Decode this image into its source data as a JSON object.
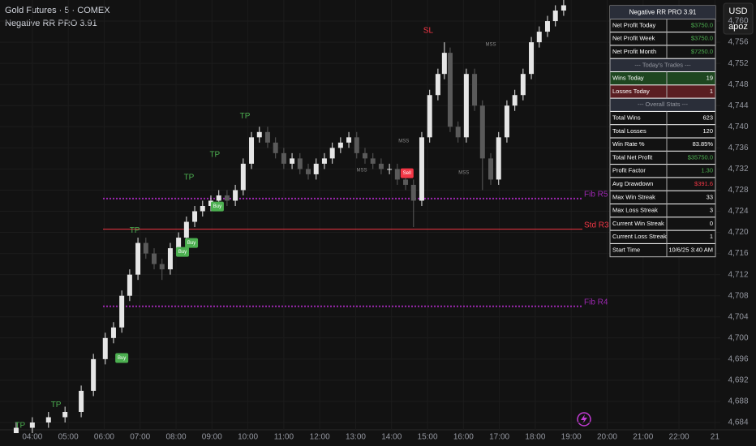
{
  "header": {
    "symbol": "Gold Futures · 5 · COMEX",
    "indicator": "Negative RR PRO 3.91"
  },
  "toolbar": {
    "currency": "USD",
    "user": "apoz"
  },
  "chart_data": {
    "type": "candlestick",
    "up_color": "#e6e6e6",
    "down_color": "#5a5a5a",
    "grid": true,
    "xlim": [
      3.1,
      23.15
    ],
    "ylim": [
      4682.62,
      4764.0
    ],
    "xticks": [
      {
        "value": 4,
        "label": "04:00"
      },
      {
        "value": 5,
        "label": "05:00"
      },
      {
        "value": 6,
        "label": "06:00"
      },
      {
        "value": 7,
        "label": "07:00"
      },
      {
        "value": 8,
        "label": "08:00"
      },
      {
        "value": 9,
        "label": "09:00"
      },
      {
        "value": 10,
        "label": "10:00"
      },
      {
        "value": 11,
        "label": "11:00"
      },
      {
        "value": 12,
        "label": "12:00"
      },
      {
        "value": 13,
        "label": "13:00"
      },
      {
        "value": 14,
        "label": "14:00"
      },
      {
        "value": 15,
        "label": "15:00"
      },
      {
        "value": 16,
        "label": "16:00"
      },
      {
        "value": 17,
        "label": "17:00"
      },
      {
        "value": 18,
        "label": "18:00"
      },
      {
        "value": 19,
        "label": "19:00"
      },
      {
        "value": 20,
        "label": "20:00"
      },
      {
        "value": 21,
        "label": "21:00"
      },
      {
        "value": 22,
        "label": "22:00"
      },
      {
        "value": 23,
        "label": "21"
      }
    ],
    "yticks": [
      {
        "value": 4684,
        "label": "4,684"
      },
      {
        "value": 4688,
        "label": "4,688"
      },
      {
        "value": 4692,
        "label": "4,692"
      },
      {
        "value": 4696,
        "label": "4,696"
      },
      {
        "value": 4700,
        "label": "4,700"
      },
      {
        "value": 4704,
        "label": "4,704"
      },
      {
        "value": 4708,
        "label": "4,708"
      },
      {
        "value": 4712,
        "label": "4,712"
      },
      {
        "value": 4716,
        "label": "4,716"
      },
      {
        "value": 4720,
        "label": "4,720"
      },
      {
        "value": 4724,
        "label": "4,724"
      },
      {
        "value": 4728,
        "label": "4,728"
      },
      {
        "value": 4732,
        "label": "4,732"
      },
      {
        "value": 4736,
        "label": "4,736"
      },
      {
        "value": 4740,
        "label": "4,740"
      },
      {
        "value": 4744,
        "label": "4,744"
      },
      {
        "value": 4748,
        "label": "4,748"
      },
      {
        "value": 4752,
        "label": "4,752"
      },
      {
        "value": 4756,
        "label": "4,756"
      },
      {
        "value": 4760,
        "label": "4,760"
      }
    ],
    "x": [
      3.55,
      4.0,
      4.45,
      4.91,
      5.36,
      5.7,
      6.03,
      6.26,
      6.49,
      6.71,
      6.94,
      7.16,
      7.39,
      7.61,
      7.84,
      8.07,
      8.29,
      8.52,
      8.74,
      8.97,
      9.19,
      9.42,
      9.65,
      9.87,
      10.1,
      10.32,
      10.55,
      10.77,
      11.0,
      11.23,
      11.45,
      11.68,
      11.9,
      12.13,
      12.35,
      12.58,
      12.81,
      13.03,
      13.26,
      13.48,
      13.71,
      13.94,
      14.16,
      14.39,
      14.61,
      14.84,
      15.06,
      15.29,
      15.47,
      15.63,
      15.85,
      16.08,
      16.31,
      16.53,
      16.76,
      16.98,
      17.21,
      17.43,
      17.66,
      17.89,
      18.11,
      18.34,
      18.56,
      18.79
    ],
    "open": [
      4682,
      4683,
      4684,
      4685,
      4686,
      4690,
      4696,
      4700,
      4702,
      4708,
      4712,
      4718,
      4716,
      4714,
      4713,
      4717,
      4719,
      4722,
      4724,
      4725,
      4726,
      4727,
      4726,
      4728,
      4733,
      4738,
      4739,
      4737,
      4735,
      4733,
      4734,
      4732,
      4731,
      4733,
      4734,
      4736,
      4737,
      4738,
      4735,
      4734,
      4733,
      4732,
      4732,
      4730,
      4729,
      4726,
      4738,
      4746,
      4750,
      4754,
      4740,
      4738,
      4750,
      4744,
      4734,
      4730,
      4738,
      4744,
      4746,
      4750,
      4756,
      4758,
      4760,
      4762
    ],
    "high": [
      4684,
      4685,
      4686,
      4687,
      4691,
      4697,
      4701,
      4703,
      4709,
      4713,
      4719,
      4719,
      4717,
      4715,
      4718,
      4720,
      4723,
      4725,
      4726,
      4727,
      4728,
      4728,
      4729,
      4734,
      4739,
      4740,
      4740,
      4738,
      4736,
      4735,
      4735,
      4733,
      4734,
      4735,
      4737,
      4738,
      4739,
      4739,
      4736,
      4735,
      4734,
      4733,
      4733,
      4731,
      4730,
      4739,
      4747,
      4751,
      4756,
      4755,
      4741,
      4751,
      4751,
      4745,
      4735,
      4739,
      4745,
      4747,
      4751,
      4757,
      4759,
      4761,
      4763,
      4764
    ],
    "low": [
      4682,
      4682,
      4683,
      4684,
      4685,
      4689,
      4695,
      4699,
      4701,
      4707,
      4711,
      4715,
      4713,
      4711,
      4712,
      4716,
      4718,
      4721,
      4723,
      4724,
      4725,
      4725,
      4725,
      4727,
      4732,
      4737,
      4736,
      4734,
      4732,
      4732,
      4731,
      4730,
      4730,
      4732,
      4733,
      4735,
      4736,
      4734,
      4733,
      4732,
      4731,
      4731,
      4729,
      4728,
      4721,
      4725,
      4737,
      4745,
      4749,
      4739,
      4737,
      4737,
      4743,
      4728,
      4729,
      4729,
      4737,
      4743,
      4745,
      4749,
      4755,
      4757,
      4759,
      4761
    ],
    "close": [
      4683,
      4684,
      4685,
      4686,
      4690,
      4696,
      4700,
      4702,
      4708,
      4712,
      4718,
      4716,
      4714,
      4713,
      4717,
      4719,
      4722,
      4724,
      4725,
      4726,
      4727,
      4726,
      4728,
      4733,
      4738,
      4739,
      4737,
      4735,
      4733,
      4734,
      4732,
      4731,
      4733,
      4734,
      4736,
      4737,
      4738,
      4735,
      4734,
      4733,
      4732,
      4732,
      4730,
      4729,
      4726,
      4738,
      4746,
      4750,
      4754,
      4740,
      4738,
      4750,
      4744,
      4734,
      4730,
      4738,
      4744,
      4746,
      4750,
      4756,
      4758,
      4760,
      4762,
      4763
    ],
    "levels": [
      {
        "name": "Fib R5",
        "value": 4726.4,
        "color": "#9c27b0",
        "dotted": true
      },
      {
        "name": "Std R3",
        "value": 4720.6,
        "color": "#f23645",
        "dotted": false
      },
      {
        "name": "Fib R4",
        "value": 4706.0,
        "color": "#9c27b0",
        "dotted": true
      }
    ],
    "annotations": [
      {
        "label": "TP",
        "kind": "tp",
        "x": 3.66,
        "y": 4683.4
      },
      {
        "label": "TP",
        "kind": "tp",
        "x": 4.66,
        "y": 4687.3
      },
      {
        "label": "TP",
        "kind": "tp",
        "x": 6.85,
        "y": 4720.3
      },
      {
        "label": "TP",
        "kind": "tp",
        "x": 8.36,
        "y": 4730.4
      },
      {
        "label": "TP",
        "kind": "tp",
        "x": 9.08,
        "y": 4734.7
      },
      {
        "label": "TP",
        "kind": "tp",
        "x": 9.92,
        "y": 4742.0
      },
      {
        "label": "SL",
        "kind": "sl",
        "x": 15.02,
        "y": 4758.2
      },
      {
        "label": "Buy",
        "kind": "buy",
        "x": 6.49,
        "y": 4696.2
      },
      {
        "label": "Buy",
        "kind": "buy",
        "x": 8.18,
        "y": 4716.3
      },
      {
        "label": "Buy",
        "kind": "buy",
        "x": 8.43,
        "y": 4718.0
      },
      {
        "label": "Buy",
        "kind": "buy",
        "x": 9.15,
        "y": 4724.9
      },
      {
        "label": "Sell",
        "kind": "sell",
        "x": 14.43,
        "y": 4731.2
      },
      {
        "label": "MSS",
        "kind": "mss",
        "x": 16.76,
        "y": 4755.6
      },
      {
        "label": "MSS",
        "kind": "mss",
        "x": 14.34,
        "y": 4737.3
      },
      {
        "label": "MSS",
        "kind": "mss",
        "x": 13.17,
        "y": 4731.8
      },
      {
        "label": "MSS",
        "kind": "mss",
        "x": 16.01,
        "y": 4731.3
      }
    ]
  },
  "table": {
    "title": "Negative RR PRO 3.91",
    "rows": [
      {
        "label": "Net Profit Today",
        "value": "$3750.0",
        "color": "#4caf50"
      },
      {
        "label": "Net Profit Week",
        "value": "$3750.0",
        "color": "#4caf50"
      },
      {
        "label": "Net Profit Month",
        "value": "$7250.0",
        "color": "#4caf50"
      },
      {
        "label": "--- Today's Trades ---"
      },
      {
        "label": "Wins Today",
        "value": "19",
        "highlight": "win"
      },
      {
        "label": "Losses Today",
        "value": "1",
        "highlight": "loss"
      },
      {
        "label": "--- Overall Stats ---"
      },
      {
        "label": "Total Wins",
        "value": "623"
      },
      {
        "label": "Total Losses",
        "value": "120"
      },
      {
        "label": "Win Rate %",
        "value": "83.85%"
      },
      {
        "label": "Total Net Profit",
        "value": "$35750.0",
        "color": "#4caf50"
      },
      {
        "label": "Profit Factor",
        "value": "1.30",
        "color": "#4caf50"
      },
      {
        "label": "Avg Drawdown",
        "value": "$391.6",
        "color": "#f23645"
      },
      {
        "label": "Max Win Streak",
        "value": "33"
      },
      {
        "label": "Max Loss Streak",
        "value": "3"
      },
      {
        "label": "Current Win Streak",
        "value": "0"
      },
      {
        "label": "Current Loss Streak",
        "value": "1"
      },
      {
        "label": "Start Time",
        "value": "10/6/25 3:40 AM"
      }
    ]
  }
}
